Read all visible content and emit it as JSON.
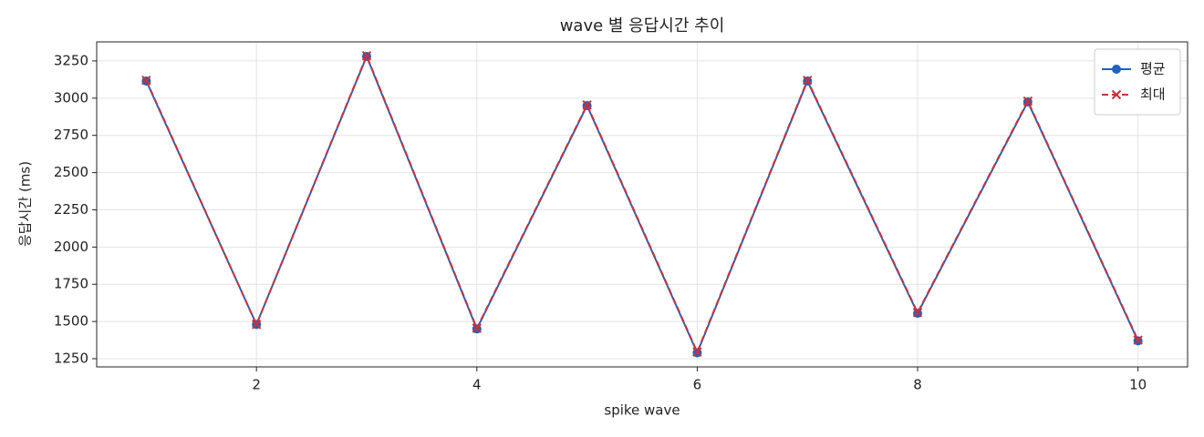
{
  "chart_data": {
    "type": "line",
    "title": "wave 별 응답시간 추이",
    "x_label": "spike wave",
    "y_label": "응답시간 (ms)",
    "x": [
      1,
      2,
      3,
      4,
      5,
      6,
      7,
      8,
      9,
      10
    ],
    "series": [
      {
        "name": "평균",
        "color": "#1f63be",
        "marker": "circle",
        "linestyle": "solid",
        "values": [
          3115,
          1480,
          3280,
          1450,
          2950,
          1290,
          3115,
          1555,
          2975,
          1370
        ]
      },
      {
        "name": "최대",
        "color": "#c8323a",
        "marker": "x",
        "linestyle": "dashed",
        "values": [
          3120,
          1480,
          3285,
          1455,
          2955,
          1295,
          3120,
          1560,
          2980,
          1375
        ]
      }
    ],
    "xlim": [
      0.55,
      10.45
    ],
    "xticks": [
      2,
      4,
      6,
      8,
      10
    ],
    "ylim": [
      1195,
      3378
    ],
    "yticks": [
      1250,
      1500,
      1750,
      2000,
      2250,
      2500,
      2750,
      3000,
      3250
    ],
    "grid": true,
    "legend": "upper right"
  }
}
